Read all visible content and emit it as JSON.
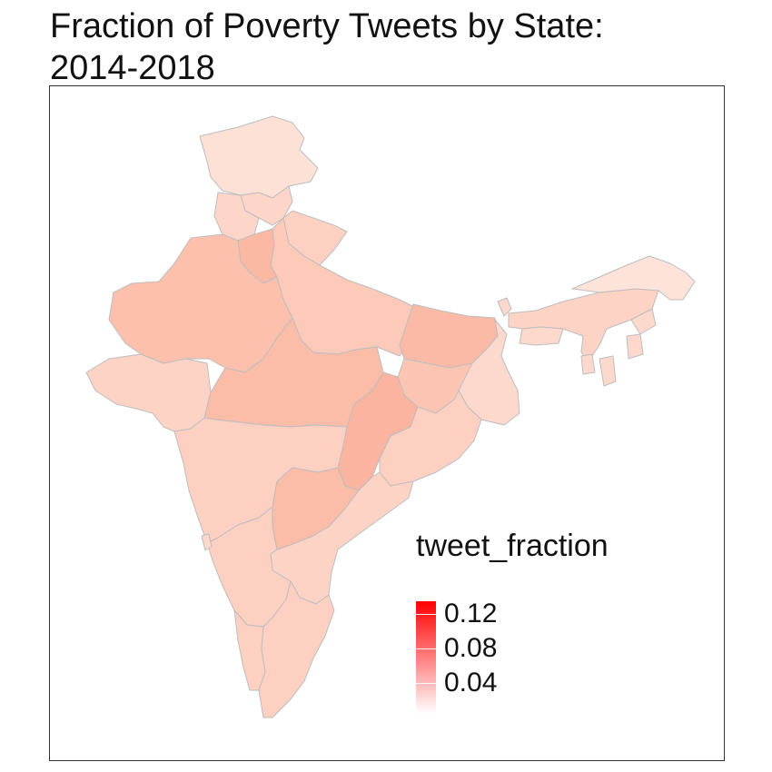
{
  "title_line1": "Fraction of Poverty Tweets by State:",
  "title_line2": "2014-2018",
  "legend": {
    "title": "tweet_fraction",
    "labels": [
      "0.12",
      "0.08",
      "0.04"
    ],
    "color_low": "#ffffff",
    "color_high": "#ff0000"
  },
  "colors": {
    "state_fill_light": "#fdd5c9",
    "state_fill_mid": "#fcbfac",
    "state_fill_dark": "#fbb39d",
    "border": "#bdbdbd"
  }
}
